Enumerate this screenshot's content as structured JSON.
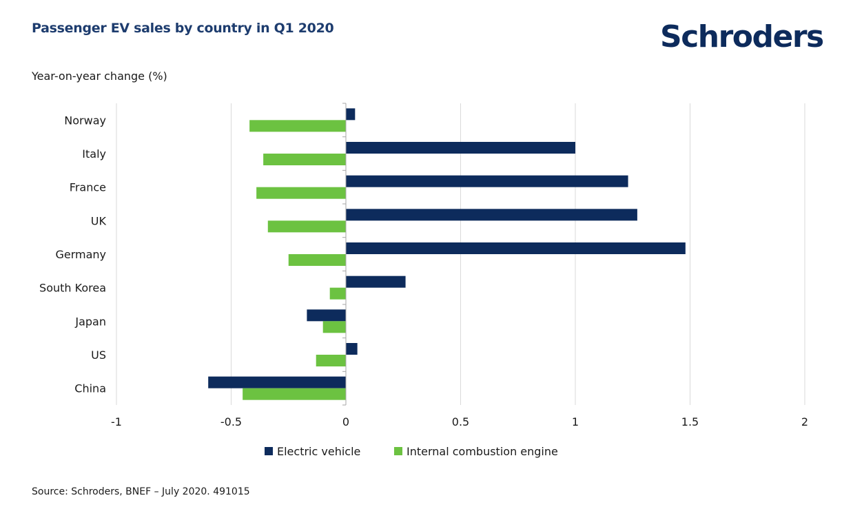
{
  "header": {
    "title": "Passenger EV sales by country in Q1 2020",
    "logo": "Schroders"
  },
  "footer": {
    "source": "Source: Schroders, BNEF – July 2020. 491015"
  },
  "chart_data": {
    "type": "bar",
    "orientation": "horizontal",
    "title": "Passenger EV sales by country in Q1 2020",
    "xlabel": "",
    "ylabel": "Year-on-year change (%)",
    "categories": [
      "Norway",
      "Italy",
      "France",
      "UK",
      "Germany",
      "South Korea",
      "Japan",
      "US",
      "China"
    ],
    "series": [
      {
        "name": "Electric vehicle",
        "color": "#0d2b5c",
        "values": [
          0.04,
          1.0,
          1.23,
          1.27,
          1.48,
          0.26,
          -0.17,
          0.05,
          -0.6
        ]
      },
      {
        "name": "Internal combustion engine",
        "color": "#6cc241",
        "values": [
          -0.42,
          -0.36,
          -0.39,
          -0.34,
          -0.25,
          -0.07,
          -0.1,
          -0.13,
          -0.45
        ]
      }
    ],
    "xlim": [
      -1,
      2
    ],
    "xticks": [
      -1,
      -0.5,
      0,
      0.5,
      1,
      1.5,
      2
    ],
    "xtick_labels": [
      "-1",
      "-0.5",
      "0",
      "0.5",
      "1",
      "1.5",
      "2"
    ],
    "grid": true,
    "legend_position": "bottom-center"
  }
}
